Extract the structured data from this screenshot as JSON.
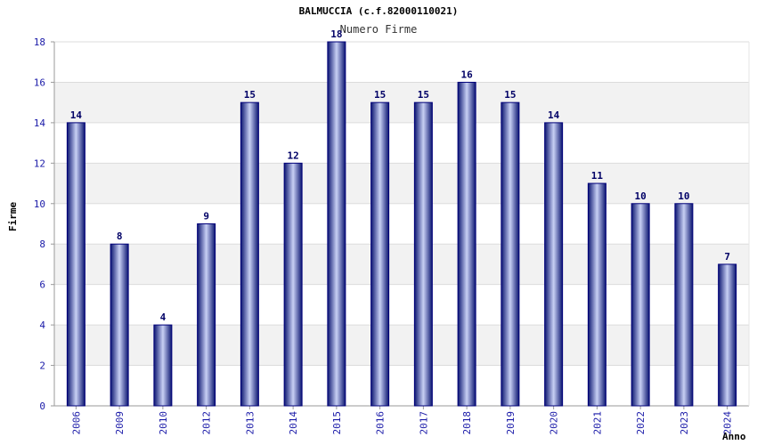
{
  "chart_data": {
    "type": "bar",
    "title": "BALMUCCIA (c.f.82000110021)",
    "subtitle": "Numero Firme",
    "xlabel": "Anno",
    "ylabel": "Firme",
    "categories": [
      "2006",
      "2009",
      "2010",
      "2012",
      "2013",
      "2014",
      "2015",
      "2016",
      "2017",
      "2018",
      "2019",
      "2020",
      "2021",
      "2022",
      "2023",
      "2024"
    ],
    "values": [
      14,
      8,
      4,
      9,
      15,
      12,
      18,
      15,
      15,
      16,
      15,
      14,
      11,
      10,
      10,
      7
    ],
    "ylim": [
      0,
      18
    ],
    "yticks": [
      0,
      2,
      4,
      6,
      8,
      10,
      12,
      14,
      16,
      18
    ],
    "grid": true,
    "colors": {
      "bar_edge": "#00007a",
      "bar_mid": "#c8d0f4",
      "bar_dark": "#0a1470",
      "value_label": "#000066",
      "tick_label": "#1a1aa8",
      "band": "#f2f2f2",
      "grid": "#dcdcdc",
      "axis": "#9a9a9a"
    }
  }
}
